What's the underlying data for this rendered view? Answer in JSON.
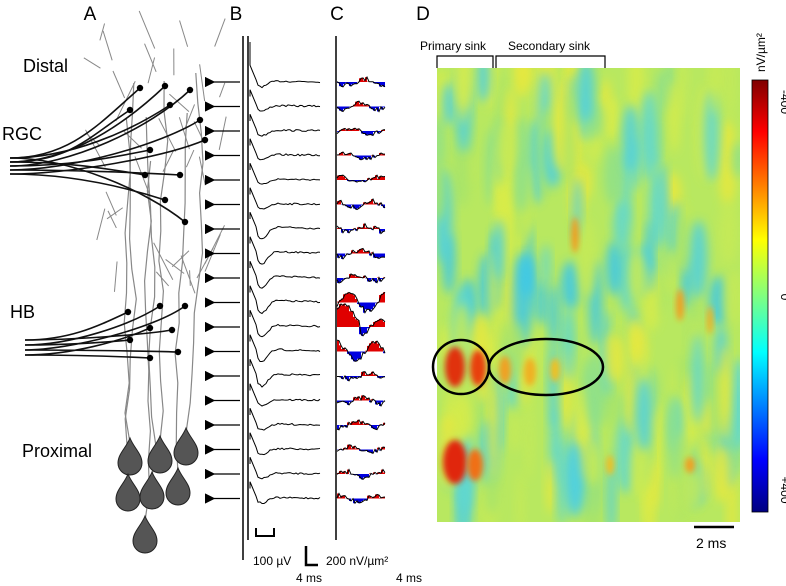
{
  "panels": {
    "a": {
      "label": "A",
      "regions": [
        "Distal",
        "RGC",
        "HB",
        "Proximal"
      ]
    },
    "b": {
      "label": "B",
      "scale": {
        "amplitude": "100 µV",
        "time": "4 ms"
      }
    },
    "c": {
      "label": "C",
      "scale": {
        "amplitude": "200 nV/µm²",
        "time": "4 ms"
      }
    },
    "d": {
      "label": "D",
      "brackets": [
        "Primary sink",
        "Secondary sink"
      ],
      "colorbar": {
        "unit": "nV/µm²",
        "ticks": [
          "-400",
          "0",
          "+400"
        ]
      },
      "scale": "2 ms"
    }
  }
}
